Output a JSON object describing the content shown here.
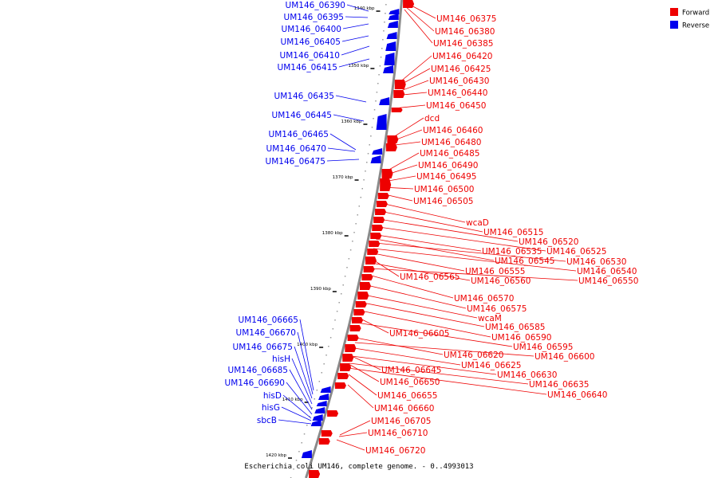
{
  "caption": "Escherichia coli UM146, complete genome. - 0..4993013",
  "legend": [
    {
      "label": "Forward",
      "color": "#ee0000"
    },
    {
      "label": "Reverse",
      "color": "#0000ee"
    }
  ],
  "colors": {
    "forward": "#ee0000",
    "reverse": "#0000ee",
    "axis": "#888888"
  },
  "ticks": [
    "1340 kbp",
    "1350 kbp",
    "1360 kbp",
    "1370 kbp",
    "1380 kbp",
    "1390 kbp",
    "1400 kbp",
    "1410 kbp",
    "1420 kbp"
  ],
  "reverse_genes": [
    "UM146_06390",
    "UM146_06395",
    "UM146_06400",
    "UM146_06405",
    "UM146_06410",
    "UM146_06415",
    "UM146_06435",
    "UM146_06445",
    "UM146_06465",
    "UM146_06470",
    "UM146_06475",
    "UM146_06665",
    "UM146_06670",
    "UM146_06675",
    "hisH",
    "UM146_06685",
    "UM146_06690",
    "hisD",
    "hisG",
    "sbcB"
  ],
  "forward_genes": [
    "UM146_06375",
    "UM146_06380",
    "UM146_06385",
    "UM146_06420",
    "UM146_06425",
    "UM146_06430",
    "UM146_06440",
    "UM146_06450",
    "dcd",
    "UM146_06460",
    "UM146_06480",
    "UM146_06485",
    "UM146_06490",
    "UM146_06495",
    "UM146_06500",
    "UM146_06505",
    "wcaD",
    "UM146_06515",
    "UM146_06520",
    "UM146_06525",
    "UM146_06535",
    "UM146_06545",
    "UM146_06530",
    "UM146_06540",
    "UM146_06555",
    "UM146_06565",
    "UM146_06560",
    "UM146_06550",
    "UM146_06570",
    "UM146_06575",
    "wcaM",
    "UM146_06585",
    "UM146_06590",
    "UM146_06605",
    "UM146_06595",
    "UM146_06620",
    "UM146_06600",
    "UM146_06625",
    "UM146_06645",
    "UM146_06630",
    "UM146_06650",
    "UM146_06635",
    "UM146_06655",
    "UM146_06640",
    "UM146_06660",
    "UM146_06705",
    "UM146_06710",
    "UM146_06720"
  ]
}
